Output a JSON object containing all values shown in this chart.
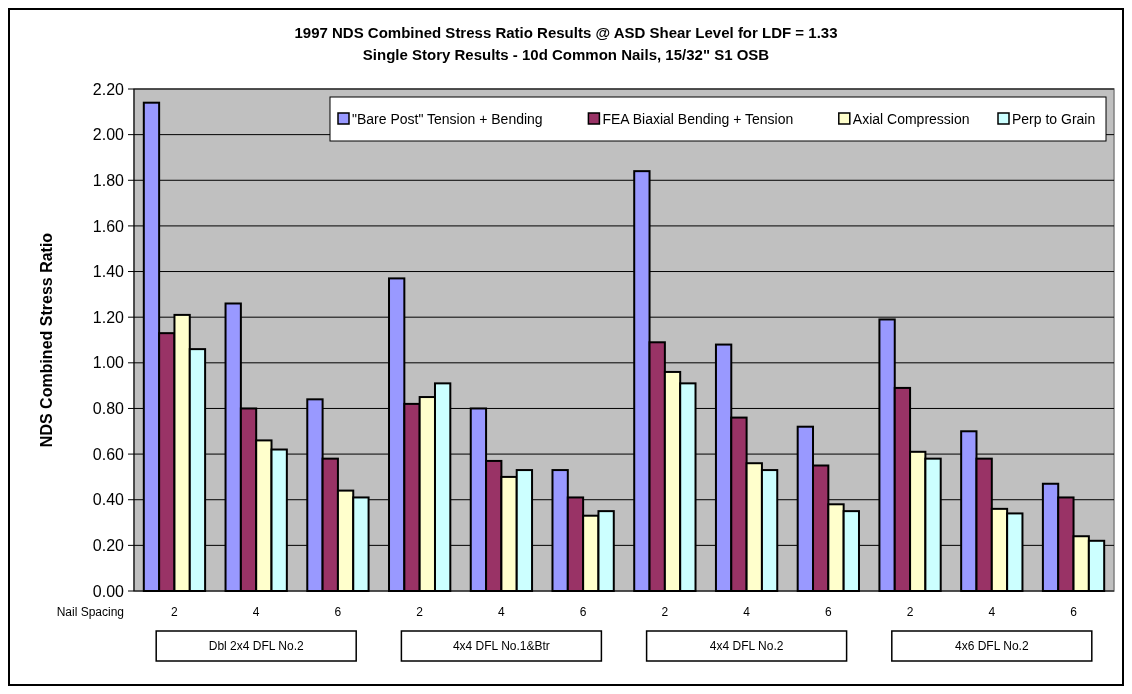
{
  "chart_data": {
    "type": "bar",
    "title": "1997 NDS Combined Stress Ratio Results @ ASD Shear Level for LDF = 1.33",
    "subtitle": "Single Story Results - 10d Common Nails, 15/32\" S1 OSB",
    "ylabel": "NDS Combined Stress Ratio",
    "xlabel": "Nail Spacing",
    "categories": [
      "2",
      "4",
      "6",
      "2",
      "4",
      "6",
      "2",
      "4",
      "6",
      "2",
      "4",
      "6"
    ],
    "series": [
      {
        "name": "\"Bare Post\" Tension + Bending",
        "color": "#9999ff",
        "values": [
          2.14,
          1.26,
          0.84,
          1.37,
          0.8,
          0.53,
          1.84,
          1.08,
          0.72,
          1.19,
          0.7,
          0.47
        ]
      },
      {
        "name": "FEA Biaxial Bending + Tension",
        "color": "#993366",
        "values": [
          1.13,
          0.8,
          0.58,
          0.82,
          0.57,
          0.41,
          1.09,
          0.76,
          0.55,
          0.89,
          0.58,
          0.41
        ]
      },
      {
        "name": "Axial Compression",
        "color": "#ffffcc",
        "values": [
          1.21,
          0.66,
          0.44,
          0.85,
          0.5,
          0.33,
          0.96,
          0.56,
          0.38,
          0.61,
          0.36,
          0.24
        ]
      },
      {
        "name": "Perp to Grain",
        "color": "#ccffff",
        "values": [
          1.06,
          0.62,
          0.41,
          0.91,
          0.53,
          0.35,
          0.91,
          0.53,
          0.35,
          0.58,
          0.34,
          0.22
        ]
      }
    ],
    "ylim": [
      0,
      2.2
    ],
    "yticks": [
      {
        "value": 0,
        "label": "0.00"
      },
      {
        "value": 0.2,
        "label": "0.20"
      },
      {
        "value": 0.4,
        "label": "0.40"
      },
      {
        "value": 0.6,
        "label": "0.60"
      },
      {
        "value": 0.8,
        "label": "0.80"
      },
      {
        "value": 1,
        "label": "1.00"
      },
      {
        "value": 1.2,
        "label": "1.20"
      },
      {
        "value": 1.4,
        "label": "1.40"
      },
      {
        "value": 1.6,
        "label": "1.60"
      },
      {
        "value": 1.8,
        "label": "1.80"
      },
      {
        "value": 2,
        "label": "2.00"
      },
      {
        "value": 2.2,
        "label": "2.20"
      }
    ],
    "grid": "y",
    "legend": "top right",
    "annotations": [
      "Dbl 2x4  DFL No.2",
      "4x4  DFL No.1&Btr",
      "4x4  DFL No.2",
      "4x6  DFL No.2"
    ]
  }
}
